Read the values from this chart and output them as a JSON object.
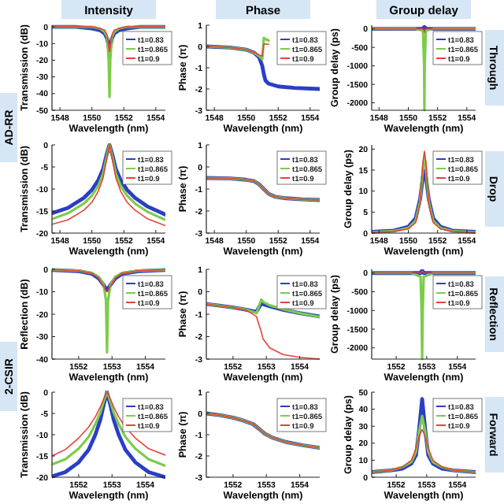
{
  "chart_data": [
    {
      "type": "line",
      "title": "Intensity",
      "xlabel": "Wavelength (nm)",
      "ylabel": "Transmission (dB)",
      "xlim": [
        1547.5,
        1554.6
      ],
      "xticks": [
        1548,
        1550,
        1552,
        1554
      ],
      "ylim": [
        -50,
        1
      ],
      "yticks": [
        0,
        -10,
        -20,
        -30,
        -40,
        -50
      ],
      "legend": "top right",
      "annotations": [
        "AD-RR"
      ],
      "x": [
        1547.5,
        1549,
        1550,
        1550.5,
        1550.8,
        1550.95,
        1551.05,
        1551.1,
        1551.15,
        1551.25,
        1551.4,
        1551.7,
        1552.2,
        1553,
        1554.6
      ],
      "series": [
        {
          "name": "t1=0.83",
          "color": "#2b3fc4",
          "values": [
            0,
            0,
            -1,
            -2,
            -4,
            -7,
            -12,
            -14,
            -12,
            -7,
            -4,
            -2,
            -1,
            0,
            0
          ]
        },
        {
          "name": "t1=0.865",
          "color": "#7ccc4a",
          "values": [
            0,
            0,
            0,
            -1,
            -3,
            -6,
            -20,
            -42,
            -20,
            -6,
            -3,
            -1,
            0,
            0,
            0
          ]
        },
        {
          "name": "t1=0.9",
          "color": "#e8403a",
          "values": [
            0,
            0,
            0,
            -1,
            -2,
            -5,
            -12,
            -15,
            -12,
            -5,
            -2,
            -1,
            0,
            0,
            0
          ]
        }
      ]
    },
    {
      "type": "line",
      "title": "Phase",
      "xlabel": "Wavelength (nm)",
      "ylabel": "Phase (π)",
      "xlim": [
        1547.5,
        1554.6
      ],
      "xticks": [
        1548,
        1550,
        1552,
        1554
      ],
      "ylim": [
        -3,
        1
      ],
      "yticks": [
        -3,
        -2,
        -1,
        0,
        1
      ],
      "legend": "top right",
      "x": [
        1547.5,
        1549,
        1550,
        1550.5,
        1550.8,
        1551,
        1551.1,
        1551.2,
        1551.4,
        1552,
        1553,
        1554.6
      ],
      "series": [
        {
          "name": "t1=0.83",
          "color": "#2b3fc4",
          "values": [
            0,
            -0.05,
            -0.15,
            -0.3,
            -0.5,
            -0.9,
            -1.3,
            -1.6,
            -1.75,
            -1.88,
            -1.95,
            -2
          ]
        },
        {
          "name": "t1=0.865",
          "color": "#7ccc4a",
          "values": [
            0,
            -0.05,
            -0.15,
            -0.3,
            -0.45,
            -0.6,
            0.4,
            0.35,
            0.28,
            null,
            null,
            null
          ]
        },
        {
          "name": "t1=0.9",
          "color": "#e8403a",
          "values": [
            0,
            -0.05,
            -0.15,
            -0.28,
            -0.4,
            -0.45,
            0.1,
            0.12,
            0.1,
            null,
            null,
            null
          ]
        }
      ]
    },
    {
      "type": "line",
      "title": "Group delay",
      "xlabel": "Wavelength (nm)",
      "ylabel": "Group delay (ps)",
      "xlim": [
        1547.5,
        1554.6
      ],
      "xticks": [
        1548,
        1550,
        1552,
        1554
      ],
      "ylim": [
        -2200,
        100
      ],
      "yticks": [
        0,
        -500,
        -1000,
        -1500,
        -2000
      ],
      "legend": "top right",
      "annotations": [
        "Through"
      ],
      "x": [
        1547.5,
        1550.5,
        1551,
        1551.08,
        1551.1,
        1551.12,
        1551.2,
        1551.7,
        1554.6
      ],
      "series": [
        {
          "name": "t1=0.83",
          "color": "#2b3fc4",
          "values": [
            0,
            0,
            0,
            50,
            50,
            50,
            0,
            0,
            0
          ]
        },
        {
          "name": "t1=0.865",
          "color": "#7ccc4a",
          "values": [
            0,
            0,
            -50,
            -1000,
            -2200,
            -1000,
            -50,
            0,
            0
          ]
        },
        {
          "name": "t1=0.9",
          "color": "#e8403a",
          "values": [
            0,
            0,
            0,
            -50,
            -100,
            -50,
            0,
            0,
            0
          ]
        }
      ]
    },
    {
      "type": "line",
      "xlabel": "Wavelength (nm)",
      "ylabel": "Transmission (dB)",
      "xlim": [
        1547.5,
        1554.6
      ],
      "xticks": [
        1548,
        1550,
        1552,
        1554
      ],
      "ylim": [
        -20,
        0
      ],
      "yticks": [
        0,
        -5,
        -10,
        -15,
        -20
      ],
      "legend": "top right",
      "x": [
        1547.5,
        1548.5,
        1549.5,
        1550,
        1550.4,
        1550.7,
        1550.9,
        1551.1,
        1551.3,
        1551.5,
        1551.8,
        1552.2,
        1552.7,
        1553.5,
        1554.6
      ],
      "series": [
        {
          "name": "t1=0.83",
          "color": "#2b3fc4",
          "values": [
            -15.5,
            -14.3,
            -12,
            -10.2,
            -8,
            -5.5,
            -2.5,
            0,
            -2.5,
            -5.5,
            -8,
            -10.2,
            -12,
            -14,
            -15.8
          ]
        },
        {
          "name": "t1=0.865",
          "color": "#7ccc4a",
          "values": [
            -16.8,
            -15.5,
            -13.3,
            -11.5,
            -9.3,
            -6.5,
            -3,
            0,
            -3,
            -6.5,
            -9.3,
            -11.5,
            -13.3,
            -15.2,
            -17
          ]
        },
        {
          "name": "t1=0.9",
          "color": "#e8403a",
          "values": [
            -18,
            -17,
            -14.8,
            -13,
            -10.5,
            -7.5,
            -3.5,
            0,
            -3.5,
            -7.5,
            -10.5,
            -13,
            -14.8,
            -16.8,
            -18.3
          ]
        }
      ]
    },
    {
      "type": "line",
      "xlabel": "Wavelength (nm)",
      "ylabel": "Phase (π)",
      "xlim": [
        1547.5,
        1554.6
      ],
      "xticks": [
        1548,
        1550,
        1552,
        1554
      ],
      "ylim": [
        -3,
        1
      ],
      "yticks": [
        -3,
        -2,
        -1,
        0,
        1
      ],
      "legend": "top right",
      "x": [
        1547.5,
        1549,
        1550,
        1550.5,
        1550.8,
        1551.1,
        1551.4,
        1551.8,
        1552.5,
        1553.5,
        1554.6
      ],
      "series": [
        {
          "name": "t1=0.83",
          "color": "#2b3fc4",
          "values": [
            -0.5,
            -0.52,
            -0.58,
            -0.65,
            -0.78,
            -1,
            -1.22,
            -1.35,
            -1.42,
            -1.47,
            -1.5
          ]
        },
        {
          "name": "t1=0.865",
          "color": "#7ccc4a",
          "values": [
            -0.5,
            -0.52,
            -0.58,
            -0.65,
            -0.78,
            -1,
            -1.22,
            -1.35,
            -1.42,
            -1.47,
            -1.5
          ]
        },
        {
          "name": "t1=0.9",
          "color": "#e8403a",
          "values": [
            -0.5,
            -0.52,
            -0.58,
            -0.65,
            -0.78,
            -1,
            -1.22,
            -1.35,
            -1.42,
            -1.47,
            -1.5
          ]
        }
      ]
    },
    {
      "type": "line",
      "xlabel": "Wavelength (nm)",
      "ylabel": "Group delay (ps)",
      "xlim": [
        1547.5,
        1554.6
      ],
      "xticks": [
        1548,
        1550,
        1552,
        1554
      ],
      "ylim": [
        0,
        21
      ],
      "yticks": [
        0,
        5,
        10,
        15,
        20
      ],
      "legend": "top right",
      "annotations": [
        "Drop"
      ],
      "x": [
        1547.5,
        1549,
        1550,
        1550.5,
        1550.8,
        1551,
        1551.1,
        1551.2,
        1551.4,
        1551.7,
        1552.2,
        1553,
        1554.6
      ],
      "series": [
        {
          "name": "t1=0.83",
          "color": "#2b3fc4",
          "values": [
            0.3,
            0.6,
            1.5,
            3.5,
            8,
            13.5,
            14.8,
            13.5,
            8,
            3.5,
            1.5,
            0.6,
            0.3
          ]
        },
        {
          "name": "t1=0.865",
          "color": "#7ccc4a",
          "values": [
            0.2,
            0.5,
            1.2,
            3,
            7.5,
            15.5,
            18,
            15.5,
            7.5,
            3,
            1.2,
            0.5,
            0.2
          ]
        },
        {
          "name": "t1=0.9",
          "color": "#e8403a",
          "values": [
            0.2,
            0.4,
            1,
            2.5,
            7,
            17,
            19.5,
            17,
            7,
            2.5,
            1,
            0.4,
            0.2
          ]
        }
      ]
    },
    {
      "type": "line",
      "xlabel": "Wavelength (nm)",
      "ylabel": "Reflection (dB)",
      "xlim": [
        1551.2,
        1554.6
      ],
      "xticks": [
        1552,
        1553,
        1554
      ],
      "ylim": [
        -40,
        0
      ],
      "yticks": [
        0,
        -10,
        -20,
        -30,
        -40
      ],
      "legend": "top right",
      "annotations": [
        "2-CSIR"
      ],
      "x": [
        1551.2,
        1552,
        1552.4,
        1552.6,
        1552.75,
        1552.82,
        1552.85,
        1552.88,
        1552.95,
        1553.1,
        1553.3,
        1553.8,
        1554.6
      ],
      "series": [
        {
          "name": "t1=0.83",
          "color": "#2b3fc4",
          "values": [
            -0.3,
            -0.8,
            -2,
            -4,
            -7,
            -8.7,
            -9,
            -8.7,
            -7,
            -4,
            -2,
            -0.8,
            -0.3
          ]
        },
        {
          "name": "t1=0.865",
          "color": "#7ccc4a",
          "values": [
            -0.2,
            -0.6,
            -1.6,
            -3.3,
            -7,
            -14,
            -37,
            -14,
            -7,
            -3.3,
            -1.6,
            -0.6,
            -0.2
          ]
        },
        {
          "name": "t1=0.9",
          "color": "#e8403a",
          "values": [
            -0.2,
            -0.6,
            -1.8,
            -3.8,
            -7.5,
            -9.7,
            -10,
            -9.7,
            -7.5,
            -3.8,
            -1.8,
            -0.6,
            -0.2
          ]
        }
      ]
    },
    {
      "type": "line",
      "xlabel": "Wavelength (nm)",
      "ylabel": "Phase (π)",
      "xlim": [
        1551.2,
        1554.6
      ],
      "xticks": [
        1552,
        1553,
        1554
      ],
      "ylim": [
        -3,
        1
      ],
      "yticks": [
        -3,
        -2,
        -1,
        0,
        1
      ],
      "legend": "top right",
      "x": [
        1551.2,
        1551.6,
        1552,
        1552.4,
        1552.7,
        1552.85,
        1552.9,
        1553.1,
        1553.5,
        1554,
        1554.6
      ],
      "series": [
        {
          "name": "t1=0.83",
          "color": "#2b3fc4",
          "values": [
            -0.55,
            -0.62,
            -0.7,
            -0.8,
            -0.9,
            -0.5,
            -0.55,
            -0.65,
            -0.8,
            -0.95,
            -1.1
          ]
        },
        {
          "name": "t1=0.865",
          "color": "#7ccc4a",
          "values": [
            -0.55,
            -0.62,
            -0.7,
            -0.8,
            -0.95,
            -0.35,
            -0.45,
            -0.6,
            -0.78,
            -0.95,
            -1.12
          ]
        },
        {
          "name": "t1=0.9",
          "color": "#e8403a",
          "values": [
            -0.55,
            -0.62,
            -0.7,
            -0.82,
            -1.1,
            -1.8,
            -2.1,
            -2.5,
            -2.8,
            -2.92,
            -3
          ]
        }
      ]
    },
    {
      "type": "line",
      "xlabel": "Wavelength (nm)",
      "ylabel": "Group delay (ps)",
      "xlim": [
        1551.2,
        1554.6
      ],
      "xticks": [
        1552,
        1553,
        1554
      ],
      "ylim": [
        -2300,
        100
      ],
      "yticks": [
        0,
        -500,
        -1000,
        -1500,
        -2000
      ],
      "legend": "top right",
      "annotations": [
        "Reflection"
      ],
      "x": [
        1551.2,
        1552.5,
        1552.8,
        1552.83,
        1552.85,
        1552.87,
        1552.9,
        1553.2,
        1554.6
      ],
      "series": [
        {
          "name": "t1=0.83",
          "color": "#2b3fc4",
          "values": [
            0,
            0,
            0,
            50,
            50,
            50,
            0,
            0,
            0
          ]
        },
        {
          "name": "t1=0.865",
          "color": "#7ccc4a",
          "values": [
            0,
            0,
            -100,
            -1000,
            -2300,
            -1000,
            -100,
            0,
            0
          ]
        },
        {
          "name": "t1=0.9",
          "color": "#e8403a",
          "values": [
            0,
            0,
            0,
            50,
            50,
            50,
            0,
            0,
            0
          ]
        }
      ]
    },
    {
      "type": "line",
      "xlabel": "Wavelength (nm)",
      "ylabel": "Transmission (dB)",
      "xlim": [
        1551.2,
        1554.6
      ],
      "xticks": [
        1552,
        1553,
        1554
      ],
      "ylim": [
        -20,
        0
      ],
      "yticks": [
        0,
        -5,
        -10,
        -15,
        -20
      ],
      "legend": "top right",
      "x": [
        1551.2,
        1551.6,
        1552,
        1552.3,
        1552.5,
        1552.65,
        1552.75,
        1552.85,
        1552.95,
        1553.05,
        1553.2,
        1553.4,
        1553.7,
        1554.1,
        1554.6
      ],
      "series": [
        {
          "name": "t1=0.83",
          "color": "#2b3fc4",
          "values": [
            -19.8,
            -18.8,
            -16.5,
            -13.5,
            -10,
            -6.5,
            -3,
            0,
            -3,
            -6.5,
            -10,
            -13.5,
            -16.5,
            -18.8,
            -20
          ]
        },
        {
          "name": "t1=0.865",
          "color": "#7ccc4a",
          "values": [
            -17,
            -15.8,
            -13.3,
            -10.5,
            -7.5,
            -4.8,
            -2.2,
            0,
            -2.2,
            -4.8,
            -7.5,
            -10.5,
            -13.3,
            -15.8,
            -17.3
          ]
        },
        {
          "name": "t1=0.9",
          "color": "#e8403a",
          "values": [
            -15,
            -13.5,
            -10.8,
            -8.2,
            -5.8,
            -3.5,
            -1.6,
            0,
            -1.6,
            -3.5,
            -5.8,
            -8.2,
            -10.8,
            -13.3,
            -14.8
          ]
        }
      ]
    },
    {
      "type": "line",
      "xlabel": "Wavelength (nm)",
      "ylabel": "Phase (π)",
      "xlim": [
        1551.2,
        1554.6
      ],
      "xticks": [
        1552,
        1553,
        1554
      ],
      "ylim": [
        -3,
        1
      ],
      "yticks": [
        -3,
        -2,
        -1,
        0,
        1
      ],
      "legend": "top right",
      "x": [
        1551.2,
        1551.6,
        1552,
        1552.3,
        1552.6,
        1552.8,
        1552.95,
        1553.2,
        1553.6,
        1554.1,
        1554.6
      ],
      "series": [
        {
          "name": "t1=0.83",
          "color": "#2b3fc4",
          "values": [
            0,
            -0.08,
            -0.2,
            -0.33,
            -0.5,
            -0.75,
            -0.95,
            -1.15,
            -1.35,
            -1.5,
            -1.62
          ]
        },
        {
          "name": "t1=0.865",
          "color": "#7ccc4a",
          "values": [
            0,
            -0.08,
            -0.2,
            -0.33,
            -0.5,
            -0.75,
            -0.95,
            -1.15,
            -1.35,
            -1.5,
            -1.62
          ]
        },
        {
          "name": "t1=0.9",
          "color": "#e8403a",
          "values": [
            0,
            -0.08,
            -0.2,
            -0.33,
            -0.5,
            -0.75,
            -0.95,
            -1.15,
            -1.35,
            -1.5,
            -1.62
          ]
        }
      ]
    },
    {
      "type": "line",
      "xlabel": "Wavelength (nm)",
      "ylabel": "Group delay (ps)",
      "xlim": [
        1551.2,
        1554.6
      ],
      "xticks": [
        1552,
        1553,
        1554
      ],
      "ylim": [
        0,
        50
      ],
      "yticks": [
        0,
        10,
        20,
        30,
        40,
        50
      ],
      "legend": "top right",
      "annotations": [
        "Forward"
      ],
      "x": [
        1551.2,
        1551.8,
        1552.2,
        1552.5,
        1552.65,
        1552.75,
        1552.85,
        1552.95,
        1553.05,
        1553.2,
        1553.5,
        1553.9,
        1554.6
      ],
      "series": [
        {
          "name": "t1=0.83",
          "color": "#2b3fc4",
          "values": [
            3,
            4,
            5,
            8,
            13,
            28,
            46,
            28,
            13,
            8,
            5,
            4,
            3
          ]
        },
        {
          "name": "t1=0.865",
          "color": "#7ccc4a",
          "values": [
            3,
            4,
            6,
            9,
            15,
            27,
            36,
            27,
            15,
            9,
            6,
            4,
            3
          ]
        },
        {
          "name": "t1=0.9",
          "color": "#e8403a",
          "values": [
            3,
            4,
            6,
            10,
            17,
            24,
            28,
            24,
            17,
            10,
            6,
            4,
            3
          ]
        }
      ]
    }
  ]
}
